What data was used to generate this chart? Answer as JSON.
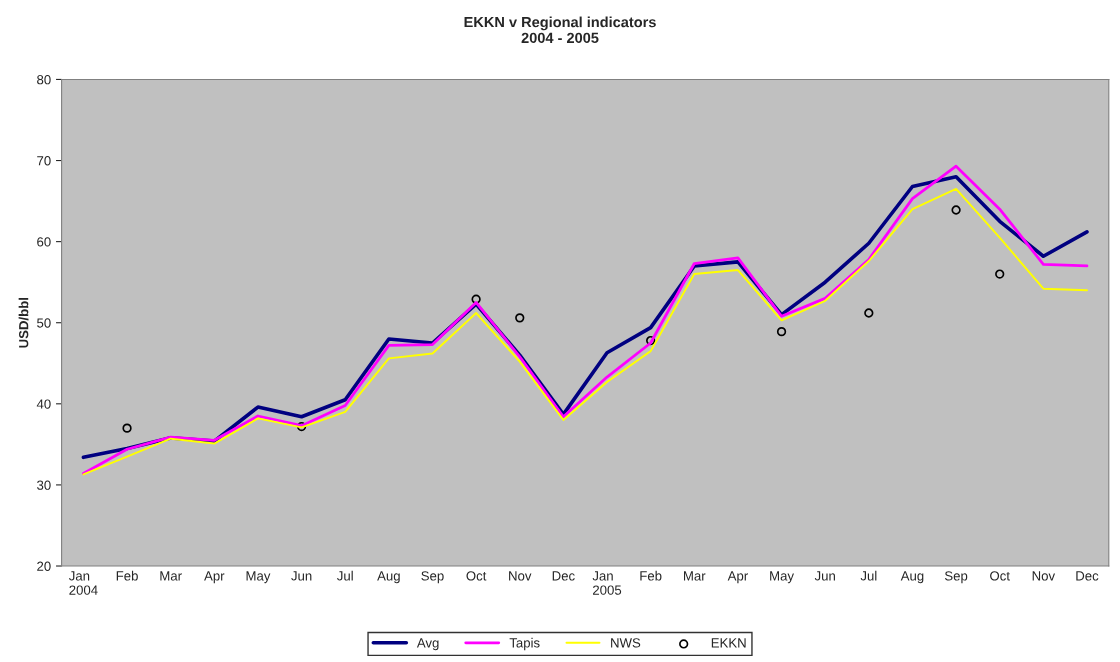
{
  "chart_data": {
    "type": "line",
    "title": "EKKN v Regional indicators\n2004 - 2005",
    "ylabel": "USD/bbl",
    "categories": [
      "Jan\n2004",
      "Feb",
      "Mar",
      "Apr",
      "May",
      "Jun",
      "Jul",
      "Aug",
      "Sep",
      "Oct",
      "Nov",
      "Dec",
      "Jan\n2005",
      "Feb",
      "Mar",
      "Apr",
      "May",
      "Jun",
      "Jul",
      "Aug",
      "Sep",
      "Oct",
      "Nov",
      "Dec"
    ],
    "series": [
      {
        "name": "Avg",
        "color": "#000080",
        "values": [
          33.4,
          34.5,
          35.8,
          35.4,
          39.6,
          38.4,
          40.5,
          48.0,
          47.5,
          52.3,
          46.0,
          38.7,
          46.3,
          49.4,
          57.0,
          57.5,
          51.0,
          55.0,
          59.8,
          66.8,
          68.0,
          62.5,
          58.2,
          61.2
        ]
      },
      {
        "name": "Tapis",
        "color": "#ff00ff",
        "values": [
          31.4,
          34.4,
          35.9,
          35.5,
          38.5,
          37.3,
          39.8,
          47.2,
          47.3,
          52.5,
          45.8,
          38.4,
          43.3,
          47.5,
          57.3,
          58.0,
          50.8,
          53.0,
          57.8,
          65.3,
          69.3,
          64.0,
          57.2,
          57.0
        ]
      },
      {
        "name": "NWS",
        "color": "#ffff00",
        "values": [
          31.3,
          33.5,
          35.7,
          35.1,
          38.2,
          37.1,
          39.0,
          45.6,
          46.2,
          51.2,
          45.2,
          38.0,
          42.7,
          46.5,
          56.0,
          56.5,
          50.3,
          52.7,
          57.6,
          64.0,
          66.5,
          60.5,
          54.2,
          54.0
        ]
      },
      {
        "name": "EKKN",
        "type": "scatter",
        "color": "#000000",
        "values": [
          null,
          37.0,
          null,
          null,
          null,
          37.2,
          null,
          null,
          null,
          52.9,
          50.6,
          null,
          null,
          47.8,
          null,
          null,
          48.9,
          null,
          51.2,
          null,
          63.9,
          56.0,
          null,
          null
        ]
      }
    ],
    "ylim": [
      20,
      80
    ],
    "yticks": [
      20,
      30,
      40,
      50,
      60,
      70,
      80
    ],
    "grid": false,
    "legend": "bottom",
    "marker": "none"
  }
}
